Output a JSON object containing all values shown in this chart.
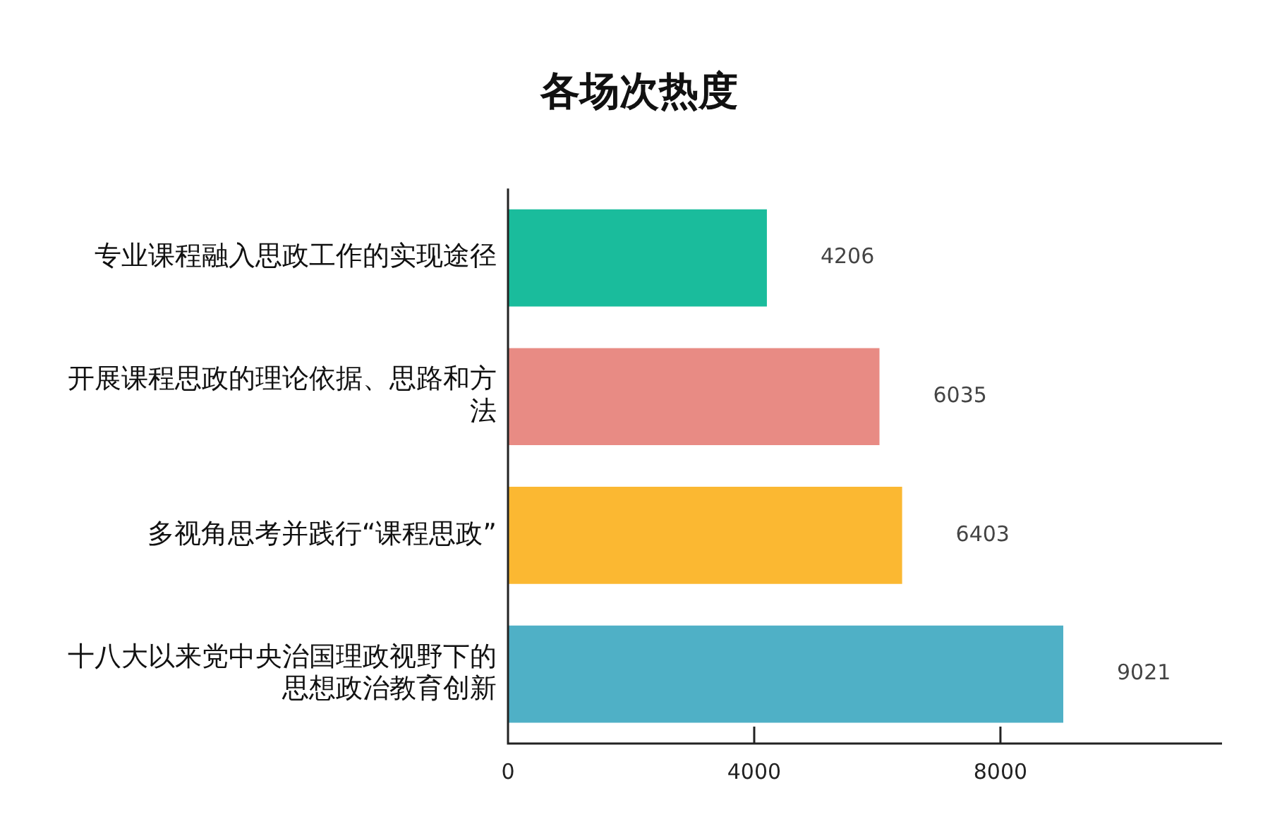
{
  "chart_data": {
    "type": "bar",
    "orientation": "horizontal",
    "title": "各场次热度",
    "categories": [
      "专业课程融入思政工作的实现途径",
      "开展课程思政的理论依据、思路和方法",
      "多视角思考并践行“课程思政”",
      "十八大以来党中央治国理政视野下的思想政治教育创新"
    ],
    "values": [
      4206,
      6035,
      6403,
      9021
    ],
    "colors": [
      "#1abc9c",
      "#e88b84",
      "#fbb832",
      "#4fb0c6"
    ],
    "xlim": [
      0,
      11600
    ],
    "xticks": [
      0,
      4000,
      8000
    ],
    "grid": false,
    "legend": false,
    "data_labels": true
  }
}
